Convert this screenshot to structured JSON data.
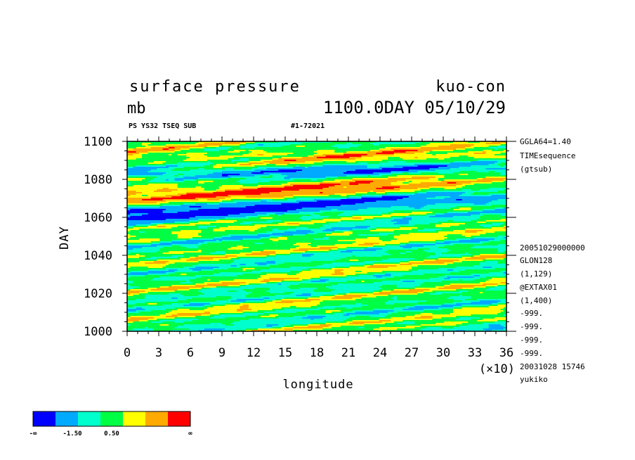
{
  "header": {
    "title": "surface pressure",
    "experiment": "kuo-con",
    "units": "mb",
    "time_stamp": "1100.0DAY 05/10/29",
    "subtitle_left": "PS YS32 TSEQ SUB",
    "subtitle_right": "#1-72021"
  },
  "side_info": [
    "GGLA64=1.40",
    "TIMEsequence",
    "(gtsub)",
    "20051029000000",
    "GLON128",
    "(1,129)",
    "@EXTAX01",
    "(1,400)",
    "-999.",
    "-999.",
    "-999.",
    "-999.",
    "20031028  15746",
    "yukiko"
  ],
  "colorbar": {
    "colors": [
      "#0000ff",
      "#00aaff",
      "#00ffcc",
      "#00ff44",
      "#ffff00",
      "#ffaa00",
      "#ff0000"
    ],
    "labels": [
      "-∞",
      "-1.50",
      "0.50",
      "∞"
    ]
  },
  "chart_data": {
    "type": "heatmap",
    "title": "surface pressure",
    "xlabel": "longitude",
    "ylabel": "DAY",
    "x_multiplier_label": "(×10)",
    "xlim": [
      0,
      36
    ],
    "ylim": [
      1000,
      1100
    ],
    "xticks": [
      0,
      3,
      6,
      9,
      12,
      15,
      18,
      21,
      24,
      27,
      30,
      33,
      36
    ],
    "yticks": [
      1000,
      1020,
      1040,
      1060,
      1080,
      1100
    ],
    "color_levels": [
      "-∞",
      "-1.50",
      "0.50",
      "∞"
    ],
    "dominant_features": [
      {
        "band": "low (blue)",
        "day_range": [
          1055,
          1072
        ],
        "longitude_range": [
          0,
          36
        ]
      },
      {
        "band": "high (orange)",
        "day_range": [
          1062,
          1082
        ],
        "longitude_range": [
          0,
          36
        ]
      }
    ]
  }
}
